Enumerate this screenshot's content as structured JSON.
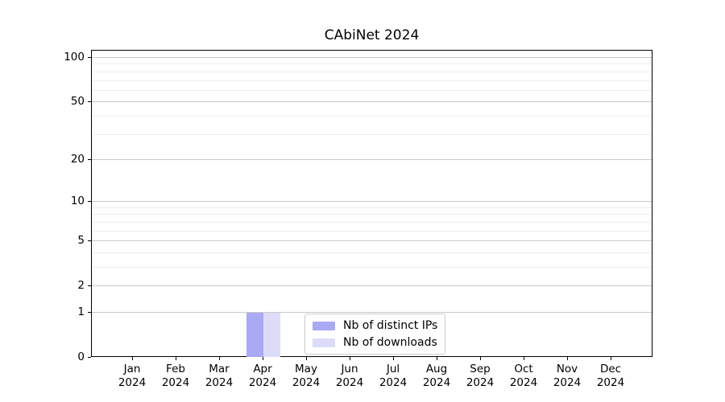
{
  "chart_data": {
    "type": "bar",
    "title": "CAbiNet 2024",
    "x": [
      {
        "month": "Jan",
        "year": "2024"
      },
      {
        "month": "Feb",
        "year": "2024"
      },
      {
        "month": "Mar",
        "year": "2024"
      },
      {
        "month": "Apr",
        "year": "2024"
      },
      {
        "month": "May",
        "year": "2024"
      },
      {
        "month": "Jun",
        "year": "2024"
      },
      {
        "month": "Jul",
        "year": "2024"
      },
      {
        "month": "Aug",
        "year": "2024"
      },
      {
        "month": "Sep",
        "year": "2024"
      },
      {
        "month": "Oct",
        "year": "2024"
      },
      {
        "month": "Nov",
        "year": "2024"
      },
      {
        "month": "Dec",
        "year": "2024"
      }
    ],
    "series": [
      {
        "name": "Nb of distinct IPs",
        "color": "#a9a9f4",
        "values": [
          0,
          0,
          0,
          1,
          0,
          0,
          0,
          0,
          0,
          0,
          0,
          0
        ]
      },
      {
        "name": "Nb of downloads",
        "color": "#dcdcf9",
        "values": [
          0,
          0,
          0,
          1,
          0,
          0,
          0,
          0,
          0,
          0,
          0,
          0
        ]
      }
    ],
    "y_axis": {
      "scale": "log1p",
      "tick_labels": [
        "0",
        "1",
        "2",
        "5",
        "10",
        "20",
        "50",
        "100"
      ],
      "tick_values": [
        0,
        1,
        2,
        5,
        10,
        20,
        50,
        100
      ],
      "gridlines_major": [
        1,
        2,
        5,
        10,
        20,
        50,
        100
      ],
      "gridlines_minor": [
        3,
        4,
        6,
        7,
        8,
        9,
        30,
        40,
        60,
        70,
        80,
        90
      ],
      "ylim": [
        0,
        112
      ]
    },
    "xlabel": "",
    "ylabel": "",
    "grid": "on",
    "legend_position": "lower center",
    "colors": {
      "axis": "#000000",
      "grid_major": "#c9c9c9",
      "grid_minor": "#ededed",
      "legend_border": "#cccccc"
    }
  }
}
